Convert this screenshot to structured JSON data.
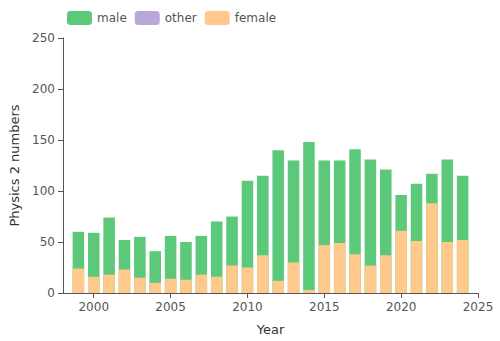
{
  "chart_data": {
    "type": "bar",
    "stacked": true,
    "x": [
      1999,
      2000,
      2001,
      2002,
      2003,
      2004,
      2005,
      2006,
      2007,
      2008,
      2009,
      2010,
      2011,
      2012,
      2013,
      2014,
      2015,
      2016,
      2017,
      2018,
      2019,
      2020,
      2021,
      2022,
      2023,
      2024
    ],
    "series": [
      {
        "name": "male",
        "color": "#5bc87a",
        "values": [
          60,
          59,
          74,
          52,
          55,
          41,
          56,
          50,
          56,
          70,
          75,
          110,
          115,
          140,
          130,
          148,
          130,
          130,
          141,
          131,
          121,
          96,
          107,
          117,
          131,
          115
        ]
      },
      {
        "name": "other",
        "color": "#b8a8d8",
        "values": [
          0,
          0,
          0,
          0,
          0,
          0,
          0,
          0,
          0,
          0,
          0,
          0,
          0,
          0,
          0,
          0,
          0,
          0,
          0,
          0,
          0,
          0,
          0,
          0,
          0,
          0
        ]
      },
      {
        "name": "female",
        "color": "#fec98a",
        "values": [
          24,
          16,
          18,
          23,
          15,
          10,
          14,
          13,
          18,
          16,
          27,
          25,
          37,
          12,
          30,
          3,
          47,
          49,
          38,
          27,
          37,
          61,
          51,
          88,
          50,
          52
        ]
      }
    ],
    "xlabel": "Year",
    "ylabel": "Physics 2 numbers",
    "xlim": [
      1998,
      2025
    ],
    "xticks": [
      2000,
      2005,
      2010,
      2015,
      2020,
      2025
    ],
    "ylim": [
      0,
      250
    ],
    "yticks": [
      0,
      50,
      100,
      150,
      200,
      250
    ],
    "legend": "upper left",
    "grid": false
  }
}
